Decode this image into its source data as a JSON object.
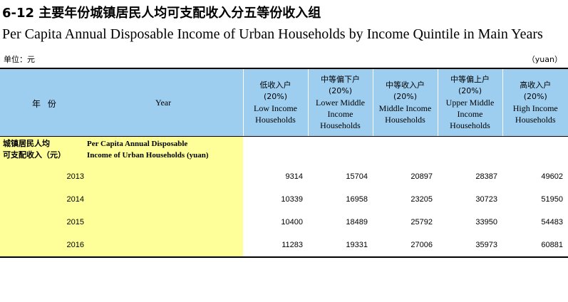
{
  "title_cn": "6-12 主要年份城镇居民人均可支配收入分五等份收入组",
  "title_en": "Per Capita Annual Disposable Income of Urban Households by Income Quintile in Main Years",
  "unit_left": "单位：元",
  "unit_right": "（yuan）",
  "header": {
    "year_cn": "年 份",
    "year_en": "Year",
    "columns": [
      {
        "cn": "低收入户",
        "pct": "(20%)",
        "en_1": "Low Income",
        "en_2": "Households",
        "en_3": ""
      },
      {
        "cn": "中等偏下户",
        "pct": "(20%)",
        "en_1": "Lower Middle",
        "en_2": "Income",
        "en_3": "Households"
      },
      {
        "cn": "中等收入户",
        "pct": "(20%)",
        "en_1": "Middle Income",
        "en_2": "Households",
        "en_3": ""
      },
      {
        "cn": "中等偏上户",
        "pct": "(20%)",
        "en_1": "Upper Middle",
        "en_2": "Income",
        "en_3": "Households"
      },
      {
        "cn": "高收入户",
        "pct": "(20%)",
        "en_1": "High Income",
        "en_2": "Households",
        "en_3": ""
      }
    ]
  },
  "group": {
    "cn_1": "城镇居民人均",
    "cn_2": "可支配收入（元）",
    "en_1": "Per Capita Annual Disposable",
    "en_2": "Income of Urban Households (yuan)"
  },
  "rows": [
    {
      "year": "2013",
      "values": [
        "9314",
        "15704",
        "20897",
        "28387",
        "49602"
      ]
    },
    {
      "year": "2014",
      "values": [
        "10339",
        "16958",
        "23205",
        "30723",
        "51950"
      ]
    },
    {
      "year": "2015",
      "values": [
        "10400",
        "18489",
        "25792",
        "33950",
        "54483"
      ]
    },
    {
      "year": "2016",
      "values": [
        "11283",
        "19331",
        "27006",
        "35973",
        "60881"
      ]
    }
  ],
  "colors": {
    "header_bg": "#9dcef0",
    "year_col_bg": "#ffff99"
  }
}
